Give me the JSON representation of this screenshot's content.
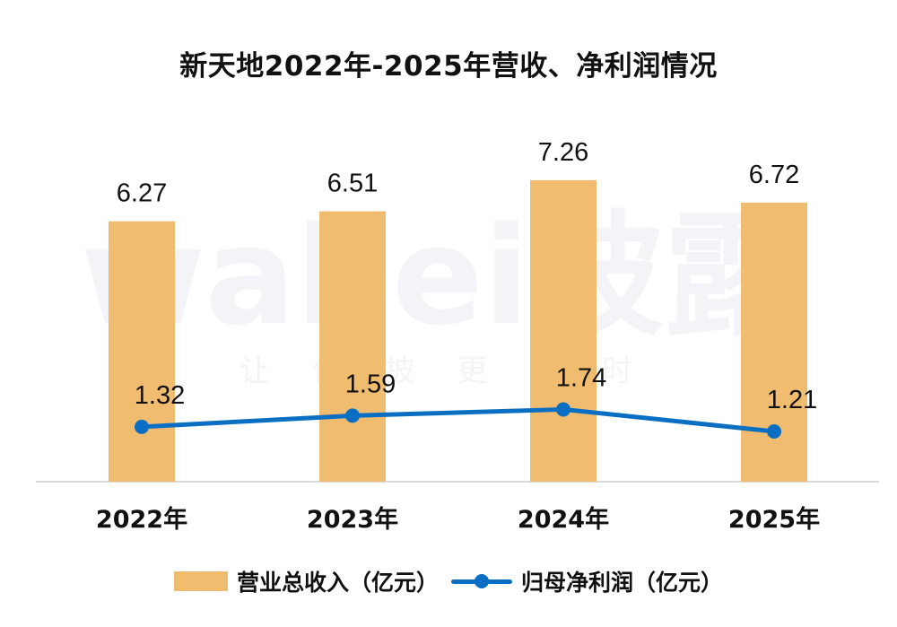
{
  "title": "新天地2022年-2025年营收、净利润情况",
  "watermark": {
    "main": "wabei披露",
    "sub": "让 信 披 更 及 时"
  },
  "legend": {
    "bar_label": "营业总收入（亿元）",
    "line_label": "归母净利润（亿元）"
  },
  "colors": {
    "bar": "#F0BC70",
    "line": "#0A6FC2",
    "axis": "#D9D9D9"
  },
  "chart_data": {
    "type": "bar+line",
    "title": "新天地2022年-2025年营收、净利润情况",
    "categories": [
      "2022年",
      "2023年",
      "2024年",
      "2025年"
    ],
    "series": [
      {
        "name": "营业总收入（亿元）",
        "type": "bar",
        "values": [
          6.27,
          6.51,
          7.26,
          6.72
        ],
        "labels": [
          "6.27",
          "6.51",
          "7.26",
          "6.72"
        ]
      },
      {
        "name": "归母净利润（亿元）",
        "type": "line",
        "values": [
          1.32,
          1.59,
          1.74,
          1.21
        ],
        "labels": [
          "1.32",
          "1.59",
          "1.74",
          "1.21"
        ]
      }
    ],
    "xlabel": "",
    "ylabel": "",
    "ylim": [
      0,
      7.26
    ],
    "grid": false,
    "legend_position": "bottom"
  }
}
